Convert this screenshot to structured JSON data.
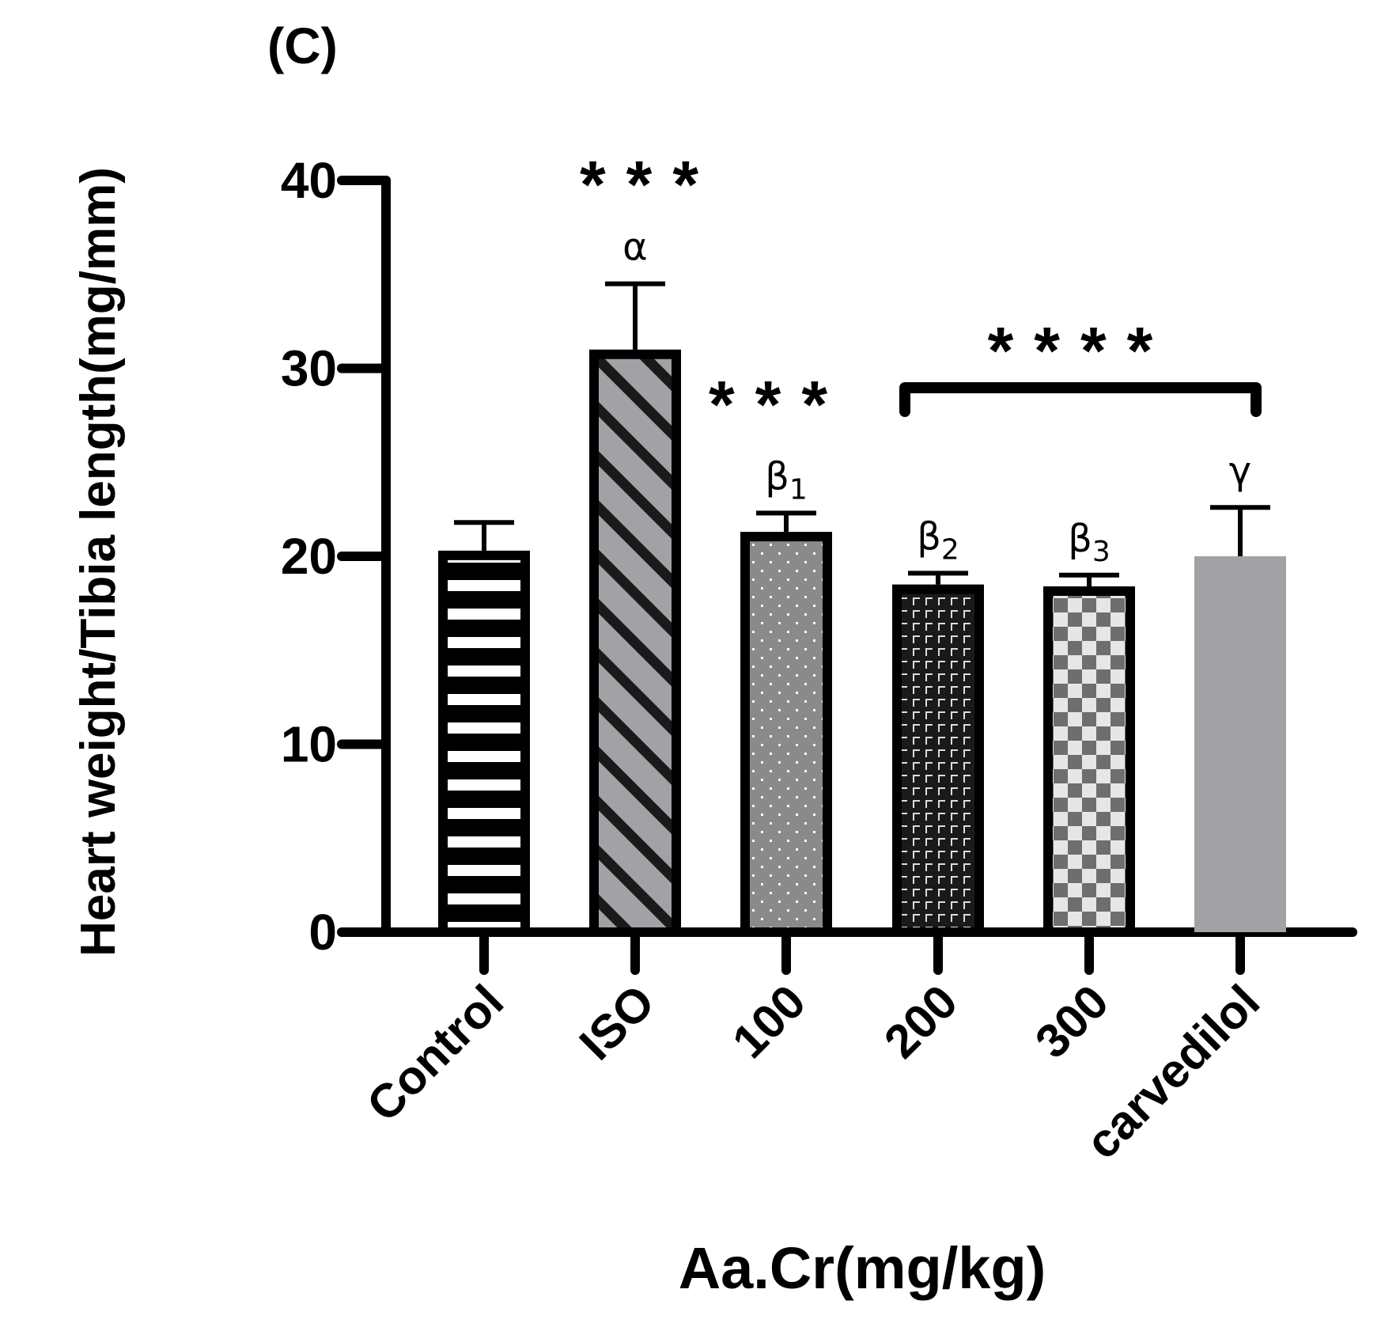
{
  "panel_label": "(C)",
  "chart_data": {
    "type": "bar",
    "title": "",
    "xlabel": "Aa.Cr(mg/kg)",
    "ylabel": "Heart weight/Tibia length(mg/mm)",
    "ylim": [
      0,
      40
    ],
    "yticks": [
      0,
      10,
      20,
      30,
      40
    ],
    "categories": [
      "Control",
      "ISO",
      "100",
      "200",
      "300",
      "carvedilol"
    ],
    "series": [
      {
        "name": "Heart weight/Tibia length",
        "values": [
          20.3,
          31.0,
          21.3,
          18.5,
          18.4,
          20.0
        ],
        "error": [
          1.5,
          3.5,
          1.0,
          0.6,
          0.6,
          2.6
        ]
      }
    ],
    "bar_patterns": [
      "hstripe",
      "diag",
      "dots",
      "brick",
      "checker",
      "solid"
    ],
    "bar_symbols": [
      {
        "category": "ISO",
        "text": "α",
        "sub": ""
      },
      {
        "category": "100",
        "text": "β",
        "sub": "1"
      },
      {
        "category": "200",
        "text": "β",
        "sub": "2"
      },
      {
        "category": "300",
        "text": "β",
        "sub": "3"
      },
      {
        "category": "carvedilol",
        "text": "γ",
        "sub": ""
      }
    ],
    "significance": [
      {
        "text": "***",
        "target": "ISO"
      },
      {
        "text": "***",
        "target": "100"
      },
      {
        "text": "****",
        "bracket_from": "200",
        "bracket_to": "carvedilol"
      }
    ],
    "colors": {
      "axis": "#000000",
      "dark_fill": "#1a1a1a",
      "mid_gray": "#8a8a8a",
      "light_gray": "#a1a1a6",
      "pale_fill": "#e6e6e6",
      "checker_fill": "#6e6e6e"
    }
  }
}
